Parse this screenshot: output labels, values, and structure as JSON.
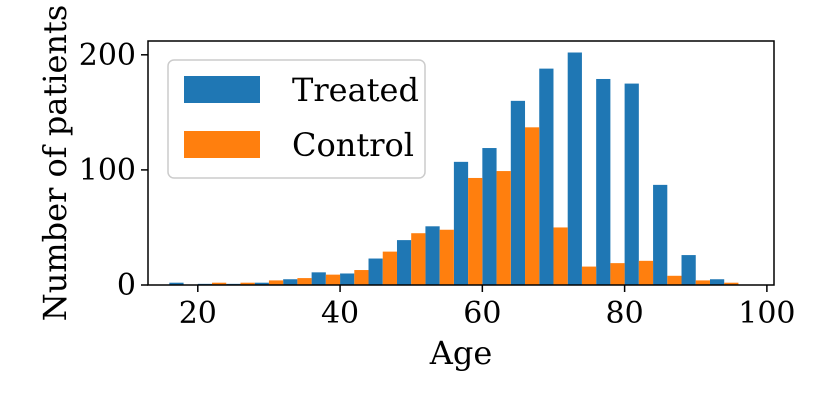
{
  "chart_data": {
    "type": "bar",
    "title": "",
    "xlabel": "Age",
    "ylabel": "Number of patients",
    "xlim": [
      13,
      101
    ],
    "ylim": [
      0,
      212
    ],
    "xticks": [
      20,
      40,
      60,
      80,
      100
    ],
    "yticks": [
      0,
      100,
      200
    ],
    "bin_width": 4,
    "x": [
      18,
      22,
      26,
      30,
      34,
      38,
      42,
      46,
      50,
      54,
      58,
      62,
      66,
      70,
      74,
      78,
      82,
      86,
      90,
      94,
      98
    ],
    "series": [
      {
        "name": "Treated",
        "color": "#1f77b4",
        "values": [
          2,
          1,
          1,
          2,
          5,
          11,
          10,
          23,
          39,
          51,
          107,
          119,
          160,
          188,
          202,
          179,
          175,
          87,
          26,
          5,
          0
        ]
      },
      {
        "name": "Control",
        "color": "#ff7f0e",
        "values": [
          0,
          2,
          2,
          4,
          6,
          9,
          13,
          29,
          45,
          48,
          93,
          99,
          137,
          50,
          16,
          19,
          21,
          8,
          4,
          2,
          0
        ]
      }
    ],
    "legend": {
      "position": "top-left",
      "labels": [
        "Treated",
        "Control"
      ]
    },
    "grid": false
  }
}
